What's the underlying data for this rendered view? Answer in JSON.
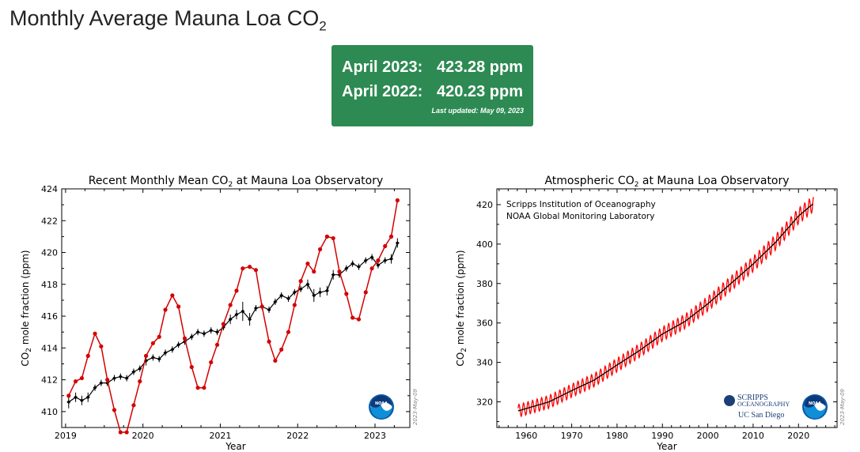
{
  "page": {
    "title": "Monthly Average Mauna Loa CO",
    "title_sub": "2"
  },
  "status_box": {
    "row1_label": "April 2023:",
    "row1_value": "423.28 ppm",
    "row2_label": "April 2022:",
    "row2_value": "420.23 ppm",
    "last_updated": "Last updated: May 09, 2023",
    "background": "#2d8a52"
  },
  "chart_data": [
    {
      "type": "line",
      "title_prefix": "Recent Monthly Mean CO",
      "title_sub": "2",
      "title_suffix": " at Mauna Loa Observatory",
      "xlabel": "Year",
      "ylabel_prefix": "CO",
      "ylabel_sub": "2",
      "ylabel_suffix": " mole fraction (ppm)",
      "xlim": [
        2018.95,
        2023.45
      ],
      "ylim": [
        409,
        424
      ],
      "xticks": [
        2019,
        2020,
        2021,
        2022,
        2023
      ],
      "yticks": [
        410,
        412,
        414,
        416,
        418,
        420,
        422,
        424
      ],
      "watermark": "2023-May-09",
      "logo": "noaa-logo",
      "series": [
        {
          "color": "#d40000",
          "marker": "circle",
          "x": [
            2019.04,
            2019.13,
            2019.21,
            2019.29,
            2019.38,
            2019.46,
            2019.54,
            2019.63,
            2019.71,
            2019.79,
            2019.88,
            2019.96,
            2020.04,
            2020.13,
            2020.21,
            2020.29,
            2020.38,
            2020.46,
            2020.54,
            2020.63,
            2020.71,
            2020.79,
            2020.88,
            2020.96,
            2021.04,
            2021.13,
            2021.21,
            2021.29,
            2021.38,
            2021.46,
            2021.54,
            2021.63,
            2021.71,
            2021.79,
            2021.88,
            2021.96,
            2022.04,
            2022.13,
            2022.21,
            2022.29,
            2022.38,
            2022.46,
            2022.54,
            2022.63,
            2022.71,
            2022.79,
            2022.88,
            2022.96,
            2023.04,
            2023.13,
            2023.21,
            2023.29
          ],
          "y": [
            411.0,
            411.9,
            412.1,
            413.5,
            414.9,
            414.1,
            412.0,
            410.1,
            408.7,
            408.7,
            410.4,
            411.9,
            413.5,
            414.3,
            414.7,
            416.4,
            417.3,
            416.6,
            414.6,
            412.8,
            411.5,
            411.5,
            413.1,
            414.2,
            415.5,
            416.7,
            417.6,
            419.0,
            419.1,
            418.9,
            416.6,
            414.4,
            413.2,
            413.9,
            415.0,
            416.7,
            418.2,
            419.3,
            418.8,
            420.2,
            421.0,
            420.9,
            418.8,
            417.4,
            415.9,
            415.8,
            417.5,
            419.0,
            419.5,
            420.4,
            421.0,
            423.28
          ]
        },
        {
          "color": "#000000",
          "marker": "diamond",
          "error_bars": true,
          "x": [
            2019.04,
            2019.13,
            2019.21,
            2019.29,
            2019.38,
            2019.46,
            2019.54,
            2019.63,
            2019.71,
            2019.79,
            2019.88,
            2019.96,
            2020.04,
            2020.13,
            2020.21,
            2020.29,
            2020.38,
            2020.46,
            2020.54,
            2020.63,
            2020.71,
            2020.79,
            2020.88,
            2020.96,
            2021.04,
            2021.13,
            2021.21,
            2021.29,
            2021.38,
            2021.46,
            2021.54,
            2021.63,
            2021.71,
            2021.79,
            2021.88,
            2021.96,
            2022.04,
            2022.13,
            2022.21,
            2022.29,
            2022.38,
            2022.46,
            2022.54,
            2022.63,
            2022.71,
            2022.79,
            2022.88,
            2022.96,
            2023.04,
            2023.13,
            2023.21,
            2023.29
          ],
          "y": [
            410.6,
            410.9,
            410.7,
            410.9,
            411.5,
            411.8,
            411.8,
            412.1,
            412.2,
            412.1,
            412.5,
            412.7,
            413.2,
            413.4,
            413.3,
            413.7,
            413.9,
            414.2,
            414.4,
            414.7,
            415.0,
            414.9,
            415.1,
            415.0,
            415.3,
            415.8,
            416.1,
            416.3,
            415.8,
            416.5,
            416.6,
            416.4,
            416.9,
            417.3,
            417.1,
            417.5,
            417.7,
            418.0,
            417.3,
            417.5,
            417.6,
            418.6,
            418.6,
            419.0,
            419.3,
            419.1,
            419.5,
            419.7,
            419.2,
            419.5,
            419.6,
            420.6
          ],
          "errors": [
            0.4,
            0.3,
            0.3,
            0.3,
            0.2,
            0.2,
            0.2,
            0.2,
            0.2,
            0.2,
            0.2,
            0.2,
            0.3,
            0.2,
            0.2,
            0.2,
            0.2,
            0.2,
            0.2,
            0.2,
            0.2,
            0.2,
            0.2,
            0.2,
            0.2,
            0.3,
            0.3,
            0.6,
            0.4,
            0.2,
            0.2,
            0.2,
            0.2,
            0.2,
            0.2,
            0.2,
            0.2,
            0.3,
            0.4,
            0.3,
            0.3,
            0.3,
            0.2,
            0.2,
            0.2,
            0.2,
            0.2,
            0.2,
            0.2,
            0.2,
            0.3,
            0.3
          ]
        }
      ]
    },
    {
      "type": "line",
      "title_prefix": "Atmospheric CO",
      "title_sub": "2",
      "title_suffix": " at Mauna Loa Observatory",
      "xlabel": "Year",
      "ylabel_prefix": "CO",
      "ylabel_sub": "2",
      "ylabel_suffix": " mole fraction (ppm)",
      "xlim": [
        1953.5,
        2028.5
      ],
      "ylim": [
        307,
        428
      ],
      "xticks": [
        1960,
        1970,
        1980,
        1990,
        2000,
        2010,
        2020
      ],
      "yticks": [
        320,
        340,
        360,
        380,
        400,
        420
      ],
      "annotations": [
        "Scripps Institution of Oceanography",
        "NOAA Global Monitoring Laboratory"
      ],
      "watermark": "2023-May-09",
      "logos": {
        "scripps_line1": "SCRIPPS",
        "scripps_line2": "OCEANOGRAPHY",
        "ucsd": "UC San Diego",
        "noaa": "NOAA"
      },
      "series": [
        {
          "color": "#ff0000",
          "kind": "monthly",
          "x_start": 1958.2,
          "x_end": 2023.3,
          "key_points": [
            [
              1958,
              315.3
            ],
            [
              1965,
              320.0
            ],
            [
              1970,
              325.7
            ],
            [
              1975,
              331.1
            ],
            [
              1980,
              338.7
            ],
            [
              1985,
              346.1
            ],
            [
              1990,
              354.4
            ],
            [
              1995,
              360.8
            ],
            [
              2000,
              369.7
            ],
            [
              2005,
              379.8
            ],
            [
              2010,
              389.9
            ],
            [
              2015,
              401.0
            ],
            [
              2020,
              414.2
            ],
            [
              2023,
              420.0
            ]
          ],
          "seasonal_amplitude": 3.2
        },
        {
          "color": "#000000",
          "kind": "trend",
          "x_start": 1958.2,
          "x_end": 2023.3,
          "key_points": [
            [
              1958,
              315.3
            ],
            [
              1965,
              320.0
            ],
            [
              1970,
              325.7
            ],
            [
              1975,
              331.1
            ],
            [
              1980,
              338.7
            ],
            [
              1985,
              346.1
            ],
            [
              1990,
              354.4
            ],
            [
              1995,
              360.8
            ],
            [
              2000,
              369.7
            ],
            [
              2005,
              379.8
            ],
            [
              2010,
              389.9
            ],
            [
              2015,
              401.0
            ],
            [
              2020,
              414.2
            ],
            [
              2023,
              420.0
            ]
          ]
        }
      ]
    }
  ]
}
